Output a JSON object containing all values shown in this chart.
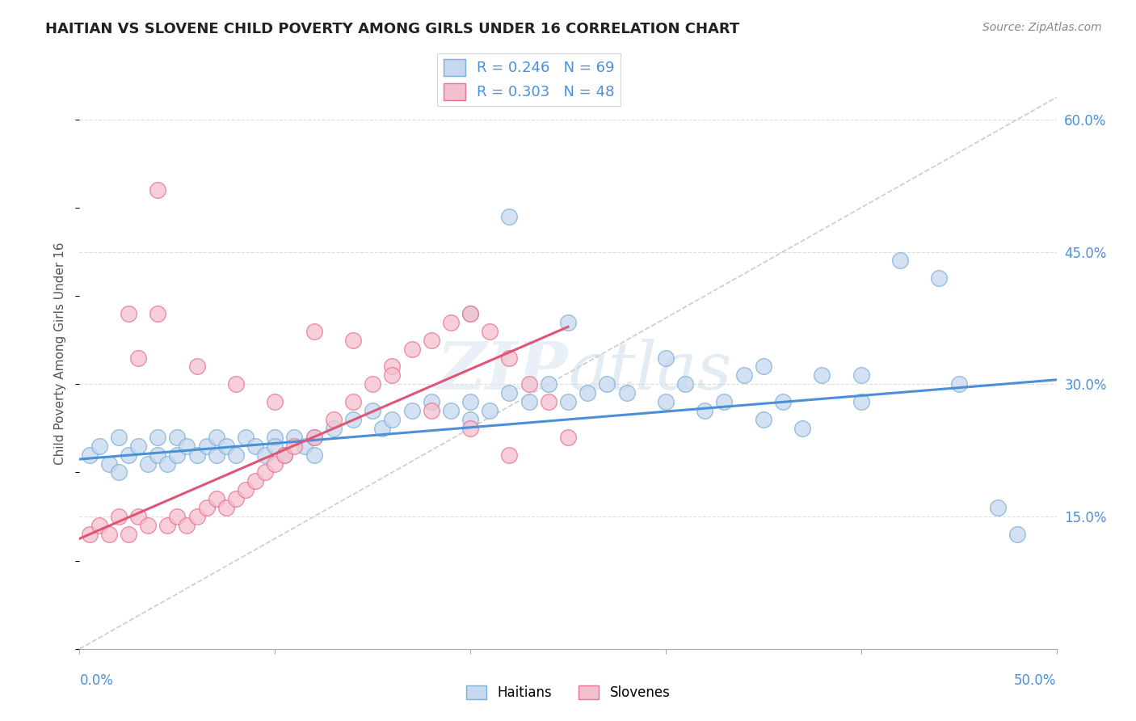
{
  "title": "HAITIAN VS SLOVENE CHILD POVERTY AMONG GIRLS UNDER 16 CORRELATION CHART",
  "source": "Source: ZipAtlas.com",
  "ylabel": "Child Poverty Among Girls Under 16",
  "xlim": [
    0.0,
    0.5
  ],
  "ylim": [
    0.0,
    0.67
  ],
  "watermark": "ZIPatlas",
  "color_haitian_fill": "#c5d8ef",
  "color_haitian_edge": "#7aaed6",
  "color_haitian_line": "#4a90d9",
  "color_slovene_fill": "#f5c0ce",
  "color_slovene_edge": "#e87090",
  "color_slovene_line": "#e05575",
  "color_ref_line": "#cccccc",
  "color_grid": "#dddddd",
  "haitian_x": [
    0.005,
    0.01,
    0.015,
    0.02,
    0.02,
    0.025,
    0.03,
    0.035,
    0.04,
    0.04,
    0.045,
    0.05,
    0.05,
    0.055,
    0.06,
    0.065,
    0.07,
    0.07,
    0.075,
    0.08,
    0.085,
    0.09,
    0.095,
    0.1,
    0.1,
    0.105,
    0.11,
    0.115,
    0.12,
    0.12,
    0.13,
    0.14,
    0.15,
    0.155,
    0.16,
    0.17,
    0.18,
    0.19,
    0.2,
    0.2,
    0.21,
    0.22,
    0.23,
    0.24,
    0.25,
    0.26,
    0.27,
    0.28,
    0.3,
    0.31,
    0.32,
    0.33,
    0.34,
    0.35,
    0.36,
    0.37,
    0.38,
    0.4,
    0.42,
    0.44,
    0.2,
    0.25,
    0.3,
    0.35,
    0.4,
    0.45,
    0.47,
    0.48,
    0.22
  ],
  "haitian_y": [
    0.22,
    0.23,
    0.21,
    0.2,
    0.24,
    0.22,
    0.23,
    0.21,
    0.24,
    0.22,
    0.21,
    0.24,
    0.22,
    0.23,
    0.22,
    0.23,
    0.24,
    0.22,
    0.23,
    0.22,
    0.24,
    0.23,
    0.22,
    0.24,
    0.23,
    0.22,
    0.24,
    0.23,
    0.22,
    0.24,
    0.25,
    0.26,
    0.27,
    0.25,
    0.26,
    0.27,
    0.28,
    0.27,
    0.28,
    0.26,
    0.27,
    0.29,
    0.28,
    0.3,
    0.28,
    0.29,
    0.3,
    0.29,
    0.28,
    0.3,
    0.27,
    0.28,
    0.31,
    0.26,
    0.28,
    0.25,
    0.31,
    0.28,
    0.44,
    0.42,
    0.38,
    0.37,
    0.33,
    0.32,
    0.31,
    0.3,
    0.16,
    0.13,
    0.49
  ],
  "slovene_x": [
    0.005,
    0.01,
    0.015,
    0.02,
    0.025,
    0.03,
    0.035,
    0.04,
    0.045,
    0.05,
    0.055,
    0.06,
    0.065,
    0.07,
    0.075,
    0.08,
    0.085,
    0.09,
    0.095,
    0.1,
    0.105,
    0.11,
    0.12,
    0.13,
    0.14,
    0.15,
    0.16,
    0.17,
    0.18,
    0.19,
    0.2,
    0.21,
    0.22,
    0.23,
    0.24,
    0.025,
    0.04,
    0.06,
    0.08,
    0.1,
    0.12,
    0.14,
    0.16,
    0.18,
    0.2,
    0.22,
    0.03,
    0.25
  ],
  "slovene_y": [
    0.13,
    0.14,
    0.13,
    0.15,
    0.13,
    0.15,
    0.14,
    0.52,
    0.14,
    0.15,
    0.14,
    0.15,
    0.16,
    0.17,
    0.16,
    0.17,
    0.18,
    0.19,
    0.2,
    0.21,
    0.22,
    0.23,
    0.24,
    0.26,
    0.28,
    0.3,
    0.32,
    0.34,
    0.35,
    0.37,
    0.38,
    0.36,
    0.33,
    0.3,
    0.28,
    0.38,
    0.38,
    0.32,
    0.3,
    0.28,
    0.36,
    0.35,
    0.31,
    0.27,
    0.25,
    0.22,
    0.33,
    0.24
  ],
  "haitian_trendline_x": [
    0.0,
    0.5
  ],
  "haitian_trendline_y": [
    0.215,
    0.305
  ],
  "slovene_trendline_x": [
    0.0,
    0.25
  ],
  "slovene_trendline_y": [
    0.125,
    0.365
  ],
  "ref_line_x": [
    0.0,
    0.5
  ],
  "ref_line_y": [
    0.0,
    0.625
  ]
}
